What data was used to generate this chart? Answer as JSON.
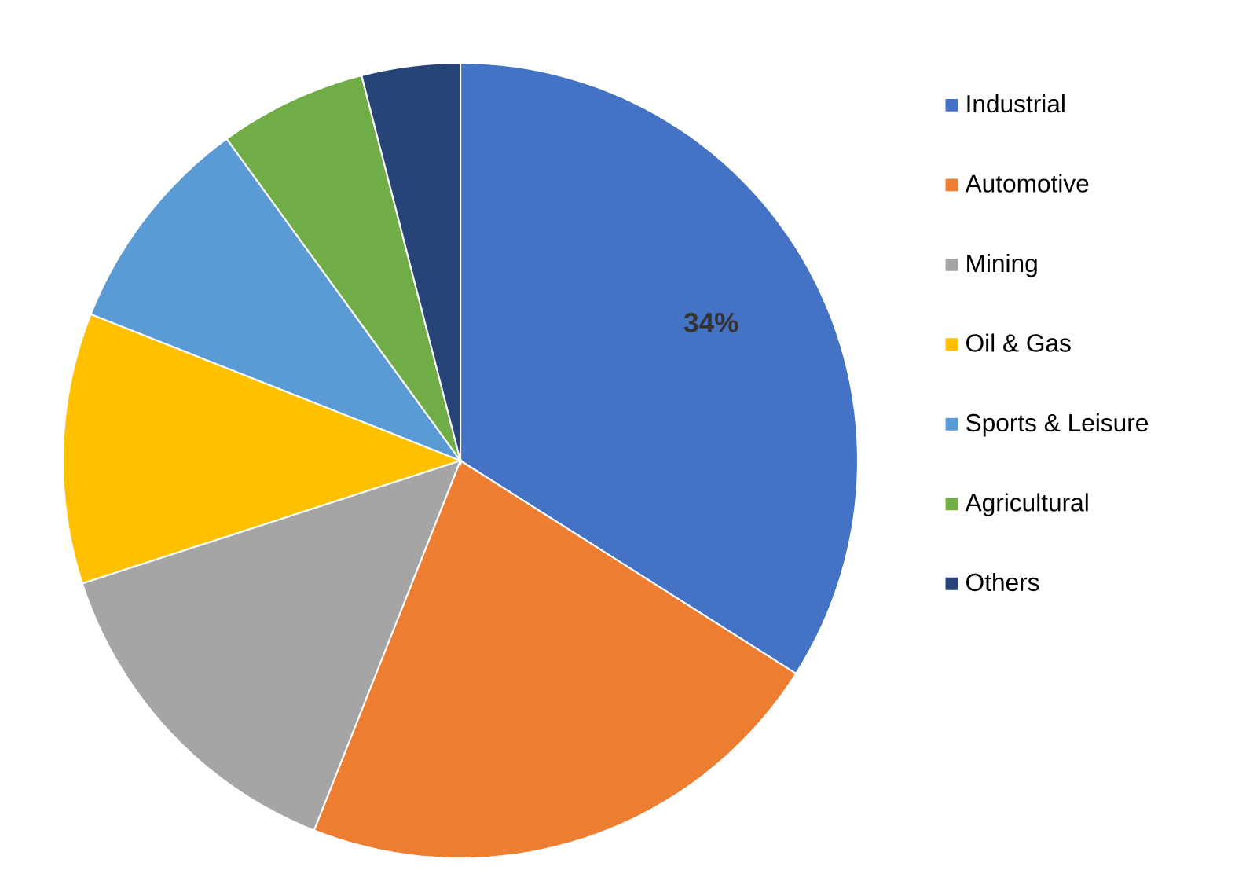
{
  "chart_data": {
    "type": "pie",
    "categories": [
      "Industrial",
      "Automotive",
      "Mining",
      "Oil & Gas",
      "Sports & Leisure",
      "Agricultural",
      "Others"
    ],
    "values": [
      34,
      22,
      14,
      11,
      9,
      6,
      4
    ],
    "colors": [
      "#4472c4",
      "#ed7d31",
      "#a5a5a5",
      "#ffc000",
      "#5b9bd5",
      "#70ad47",
      "#264478"
    ],
    "value_labels": [
      "34%",
      null,
      null,
      null,
      null,
      null,
      null
    ],
    "legend": "right"
  }
}
